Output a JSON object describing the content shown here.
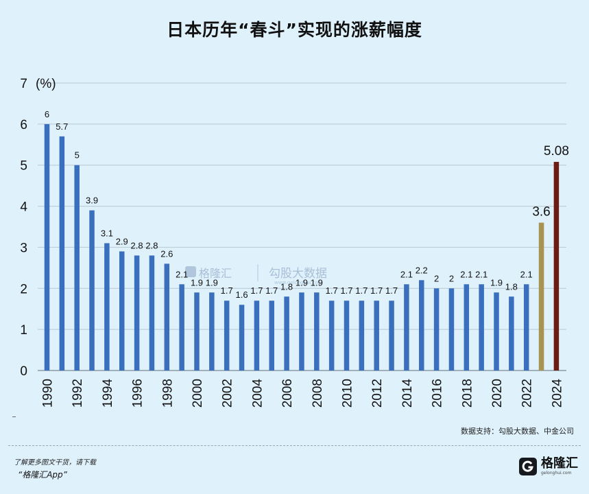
{
  "title": "日本历年“春斗”实现的涨薪幅度",
  "chart_data": {
    "type": "bar",
    "title": "日本历年“春斗”实现的涨薪幅度",
    "unit_label": "(%)",
    "ylim": [
      0,
      7
    ],
    "yticks": [
      0,
      1,
      2,
      3,
      4,
      5,
      6,
      7
    ],
    "grid": true,
    "x": [
      1990,
      1991,
      1992,
      1993,
      1994,
      1995,
      1996,
      1997,
      1998,
      1999,
      2000,
      2001,
      2002,
      2003,
      2004,
      2005,
      2006,
      2007,
      2008,
      2009,
      2010,
      2011,
      2012,
      2013,
      2014,
      2015,
      2016,
      2017,
      2018,
      2019,
      2020,
      2021,
      2022,
      2023,
      2024
    ],
    "values": [
      6,
      5.7,
      5,
      3.9,
      3.1,
      2.9,
      2.8,
      2.8,
      2.6,
      2.1,
      1.9,
      1.9,
      1.7,
      1.6,
      1.7,
      1.7,
      1.8,
      1.9,
      1.9,
      1.7,
      1.7,
      1.7,
      1.7,
      1.7,
      2.1,
      2.2,
      2,
      2,
      2.1,
      2.1,
      1.9,
      1.8,
      2.1,
      3.6,
      5.08
    ],
    "value_labels": [
      "6",
      "5.7",
      "5",
      "3.9",
      "3.1",
      "2.9",
      "2.8",
      "2.8",
      "2.6",
      "2.1",
      "1.9",
      "1.9",
      "1.7",
      "1.6",
      "1.7",
      "1.7",
      "1.8",
      "1.9",
      "1.9",
      "1.7",
      "1.7",
      "1.7",
      "1.7",
      "1.7",
      "2.1",
      "2.2",
      "2",
      "2",
      "2.1",
      "2.1",
      "1.9",
      "1.8",
      "2.1",
      "3.6",
      "5.08"
    ],
    "xtick_labels": [
      "1990",
      "1992",
      "1994",
      "1996",
      "1998",
      "2000",
      "2002",
      "2004",
      "2006",
      "2008",
      "2010",
      "2012",
      "2014",
      "2016",
      "2018",
      "2020",
      "2022",
      "2024"
    ],
    "colors": {
      "default": "#3a6fbd",
      "2023": "#a99352",
      "2024": "#6b1d14"
    }
  },
  "watermark": {
    "brand": "格隆汇",
    "partner": "勾股大数据",
    "url": "www.gelonghui.com"
  },
  "source": "数据支持：勾股大数据、中金公司",
  "promo": {
    "line1": "了解更多图文干货，请下载",
    "line2": "“格隆汇App”"
  },
  "brand": {
    "name": "格隆汇",
    "url": "gelonghui.com",
    "logo_letter": "G"
  }
}
